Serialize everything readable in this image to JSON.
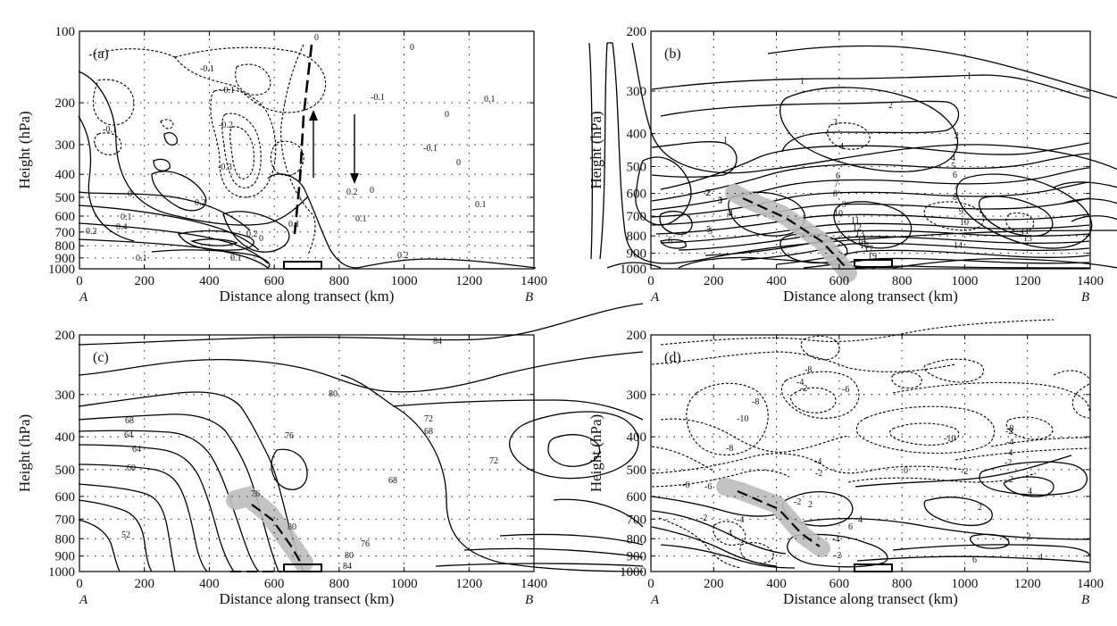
{
  "chart_data": [
    {
      "type": "contour",
      "panel_label": "(a)",
      "xlabel": "Distance along transect (km)",
      "ylabel": "Height (hPa)",
      "x_start_label": "A",
      "x_end_label": "B",
      "xlim": [
        0,
        1400
      ],
      "xticks": [
        0,
        200,
        400,
        600,
        800,
        1000,
        1200,
        1400
      ],
      "ylim": [
        1000,
        100
      ],
      "yticks": [
        100,
        200,
        300,
        400,
        500,
        600,
        700,
        800,
        900,
        1000
      ],
      "contour_labels": [
        "0",
        "-0.1",
        "-0.1",
        "-0.1",
        "-0.2",
        "-0.3",
        "0.2",
        "0.1",
        "0.2",
        "0.4",
        "0.1",
        "0",
        "0.1",
        "0.2",
        "0",
        "0.1",
        "0",
        "-0.1",
        "0.2",
        "0.1",
        "0",
        "0.1",
        "0.1",
        "0.2",
        "-0.1",
        "0",
        "0"
      ],
      "annotations": [
        "upward arrow near x=550",
        "downward arrow near x=800",
        "dashed line x=650-690",
        "box at surface x=650-770"
      ]
    },
    {
      "type": "contour",
      "panel_label": "(b)",
      "xlabel": "Distance along transect (km)",
      "ylabel": "Height (hPa)",
      "x_start_label": "A",
      "x_end_label": "B",
      "xlim": [
        0,
        1400
      ],
      "xticks": [
        0,
        200,
        400,
        600,
        800,
        1000,
        1200,
        1400
      ],
      "ylim": [
        1000,
        200
      ],
      "yticks": [
        200,
        300,
        400,
        500,
        600,
        700,
        800,
        900,
        1000
      ],
      "contour_labels": [
        "1",
        "1",
        "2",
        "1",
        "3",
        "4",
        "2",
        "3",
        "4",
        "5",
        "6",
        "7",
        "8",
        "9",
        "10",
        "11",
        "12",
        "13",
        "14",
        "16",
        "17",
        "19",
        "2",
        "3",
        "4",
        "5",
        "6",
        "7",
        "8",
        "9",
        "10",
        "11",
        "13",
        "14",
        "6",
        "5",
        "4",
        "3",
        "2"
      ],
      "annotations": [
        "shaded band with dashed line x=340-550"
      ]
    },
    {
      "type": "contour",
      "panel_label": "(c)",
      "xlabel": "Distance along transect (km)",
      "ylabel": "Height (hPa)",
      "x_start_label": "A",
      "x_end_label": "B",
      "xlim": [
        0,
        1400
      ],
      "xticks": [
        0,
        200,
        400,
        600,
        800,
        1000,
        1200,
        1400
      ],
      "ylim": [
        1000,
        200
      ],
      "yticks": [
        200,
        300,
        400,
        500,
        600,
        700,
        800,
        900,
        1000
      ],
      "contour_labels": [
        "84",
        "80",
        "76",
        "72",
        "68",
        "64",
        "60",
        "68",
        "64",
        "68",
        "72",
        "52",
        "76",
        "80",
        "76",
        "80",
        "84"
      ],
      "annotations": [
        "shaded band with dashed line x=520-680",
        "box at surface x=650-770"
      ]
    },
    {
      "type": "contour",
      "panel_label": "(d)",
      "xlabel": "Distance along transect (km)",
      "ylabel": "Height (hPa)",
      "x_start_label": "A",
      "x_end_label": "B",
      "xlim": [
        0,
        1400
      ],
      "xticks": [
        0,
        200,
        400,
        600,
        800,
        1000,
        1200,
        1400
      ],
      "ylim": [
        1000,
        200
      ],
      "yticks": [
        200,
        300,
        400,
        500,
        600,
        700,
        800,
        900,
        1000
      ],
      "contour_labels": [
        "-8",
        "-6",
        "-2",
        "-4",
        "-8",
        "-10",
        "-8",
        "-6",
        "-4",
        "-2",
        "-10",
        "-8",
        "-4",
        "-2",
        "0",
        "-2",
        "-4",
        "2",
        "-2",
        "4",
        "2",
        "-6",
        "-2",
        "-4",
        "-2",
        "2",
        "4",
        "6",
        "4",
        "-4",
        "-2",
        "6",
        "-2",
        "4"
      ],
      "annotations": [
        "shaded band with dashed line x=340-610",
        "box at surface x=650-770"
      ]
    }
  ]
}
